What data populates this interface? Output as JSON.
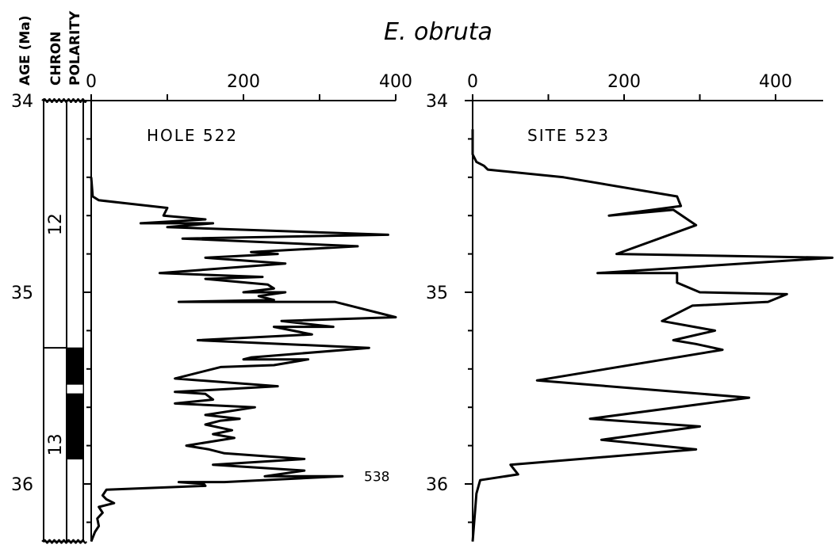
{
  "title": "E. obruta",
  "column_headers": {
    "age": "AGE (Ma)",
    "chron": "CHRON",
    "polarity": "POLARITY"
  },
  "age_axis": {
    "min": 34,
    "max": 36.3,
    "ticks": [
      34,
      35,
      36
    ],
    "tick_labels": [
      "34",
      "35",
      "36"
    ]
  },
  "chrons": [
    {
      "label": "12",
      "from": 34.0,
      "to": 35.29
    },
    {
      "label": "13",
      "from": 35.29,
      "to": 36.3
    }
  ],
  "polarity_intervals": [
    {
      "from": 35.29,
      "to": 35.48,
      "normal": true
    },
    {
      "from": 35.48,
      "to": 35.53,
      "normal": false
    },
    {
      "from": 35.53,
      "to": 35.87,
      "normal": true
    }
  ],
  "colors": {
    "ink": "#000000",
    "paper": "#ffffff"
  },
  "chart_data": [
    {
      "type": "line",
      "panel": "HOLE 522",
      "x_ticks": [
        0,
        200,
        400
      ],
      "x_tick_labels": [
        "0",
        "200",
        "400"
      ],
      "xlim": [
        0,
        400
      ],
      "ylim": [
        34,
        36.3
      ],
      "y_inverted": true,
      "annotation": {
        "text": "538",
        "age": 35.96
      },
      "series": [
        {
          "points": [
            [
              0,
              34.4
            ],
            [
              2,
              34.5
            ],
            [
              10,
              34.52
            ],
            [
              100,
              34.56
            ],
            [
              95,
              34.6
            ],
            [
              150,
              34.62
            ],
            [
              65,
              34.64
            ],
            [
              160,
              34.64
            ],
            [
              100,
              34.66
            ],
            [
              390,
              34.7
            ],
            [
              120,
              34.72
            ],
            [
              350,
              34.76
            ],
            [
              210,
              34.79
            ],
            [
              245,
              34.8
            ],
            [
              150,
              34.82
            ],
            [
              255,
              34.85
            ],
            [
              90,
              34.9
            ],
            [
              225,
              34.92
            ],
            [
              150,
              34.93
            ],
            [
              232,
              34.96
            ],
            [
              240,
              34.98
            ],
            [
              200,
              35.0
            ],
            [
              255,
              35.0
            ],
            [
              220,
              35.02
            ],
            [
              240,
              35.04
            ],
            [
              115,
              35.05
            ],
            [
              320,
              35.05
            ],
            [
              400,
              35.13
            ],
            [
              250,
              35.15
            ],
            [
              318,
              35.18
            ],
            [
              240,
              35.18
            ],
            [
              290,
              35.22
            ],
            [
              140,
              35.25
            ],
            [
              365,
              35.29
            ],
            [
              210,
              35.34
            ],
            [
              200,
              35.35
            ],
            [
              285,
              35.35
            ],
            [
              240,
              35.38
            ],
            [
              170,
              35.39
            ],
            [
              110,
              35.45
            ],
            [
              245,
              35.49
            ],
            [
              110,
              35.52
            ],
            [
              150,
              35.53
            ],
            [
              160,
              35.56
            ],
            [
              110,
              35.58
            ],
            [
              215,
              35.6
            ],
            [
              150,
              35.64
            ],
            [
              195,
              35.66
            ],
            [
              170,
              35.67
            ],
            [
              150,
              35.69
            ],
            [
              185,
              35.72
            ],
            [
              160,
              35.74
            ],
            [
              188,
              35.76
            ],
            [
              125,
              35.8
            ],
            [
              155,
              35.82
            ],
            [
              175,
              35.84
            ],
            [
              280,
              35.87
            ],
            [
              160,
              35.9
            ],
            [
              280,
              35.93
            ],
            [
              228,
              35.96
            ],
            [
              330,
              35.96
            ],
            [
              175,
              35.99
            ],
            [
              115,
              35.99
            ],
            [
              148,
              36.0
            ],
            [
              150,
              36.01
            ],
            [
              20,
              36.03
            ],
            [
              15,
              36.06
            ],
            [
              20,
              36.08
            ],
            [
              30,
              36.1
            ],
            [
              10,
              36.12
            ],
            [
              15,
              36.15
            ],
            [
              8,
              36.18
            ],
            [
              10,
              36.22
            ],
            [
              5,
              36.25
            ],
            [
              0,
              36.3
            ]
          ]
        }
      ]
    },
    {
      "type": "line",
      "panel": "SITE 523",
      "x_ticks": [
        0,
        200,
        400
      ],
      "x_tick_labels": [
        "0",
        "200",
        "400"
      ],
      "xlim": [
        0,
        400
      ],
      "ylim": [
        34,
        36.3
      ],
      "y_inverted": true,
      "series": [
        {
          "points": [
            [
              0,
              34.15
            ],
            [
              0,
              34.28
            ],
            [
              5,
              34.32
            ],
            [
              15,
              34.34
            ],
            [
              20,
              34.36
            ],
            [
              120,
              34.4
            ],
            [
              270,
              34.5
            ],
            [
              275,
              34.55
            ],
            [
              180,
              34.6
            ],
            [
              265,
              34.57
            ],
            [
              295,
              34.65
            ],
            [
              190,
              34.8
            ],
            [
              475,
              34.82
            ],
            [
              165,
              34.9
            ],
            [
              270,
              34.9
            ],
            [
              270,
              34.95
            ],
            [
              300,
              35.0
            ],
            [
              415,
              35.01
            ],
            [
              390,
              35.05
            ],
            [
              290,
              35.07
            ],
            [
              250,
              35.15
            ],
            [
              320,
              35.2
            ],
            [
              265,
              35.25
            ],
            [
              295,
              35.27
            ],
            [
              330,
              35.3
            ],
            [
              85,
              35.46
            ],
            [
              365,
              35.55
            ],
            [
              155,
              35.66
            ],
            [
              300,
              35.7
            ],
            [
              170,
              35.77
            ],
            [
              295,
              35.82
            ],
            [
              50,
              35.9
            ],
            [
              60,
              35.95
            ],
            [
              10,
              35.98
            ],
            [
              5,
              36.05
            ],
            [
              3,
              36.15
            ],
            [
              0,
              36.3
            ]
          ]
        }
      ]
    }
  ]
}
